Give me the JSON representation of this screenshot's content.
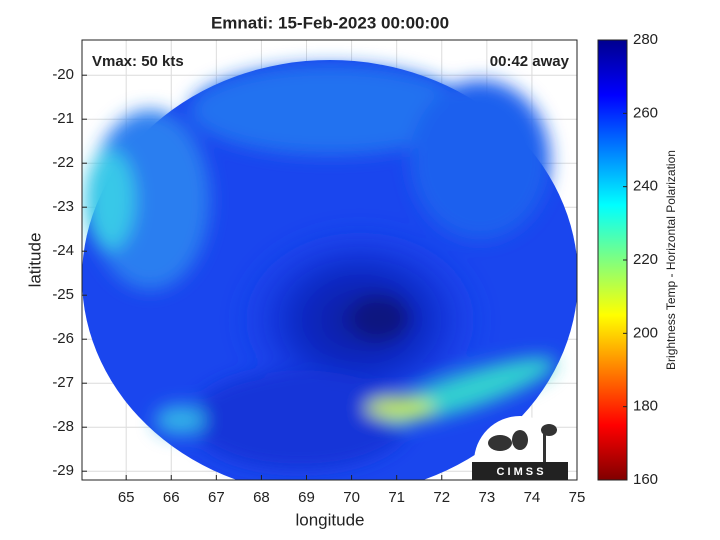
{
  "chart_data": {
    "type": "image",
    "title": "Emnati: 15-Feb-2023 00:00:00",
    "annotations": [
      "Vmax: 50 kts",
      "00:42 away"
    ],
    "xlabel": "longitude",
    "ylabel": "latitude",
    "xlim": [
      64.02,
      75
    ],
    "xticks": [
      65,
      66,
      67,
      68,
      69,
      70,
      71,
      72,
      73,
      74,
      75
    ],
    "ylim": [
      -29.2,
      -19.2
    ],
    "yticks": [
      -29,
      -28,
      -27,
      -26,
      -25,
      -24,
      -23,
      -22,
      -21,
      -20
    ],
    "grid": true,
    "colorbar": {
      "label": "Brightness Temp - Horizontal Polarization",
      "lim": [
        160,
        280
      ],
      "ticks": [
        160,
        180,
        200,
        220,
        240,
        260,
        280
      ],
      "colormap": "jet_r"
    },
    "logo_text": "C I M S S"
  }
}
